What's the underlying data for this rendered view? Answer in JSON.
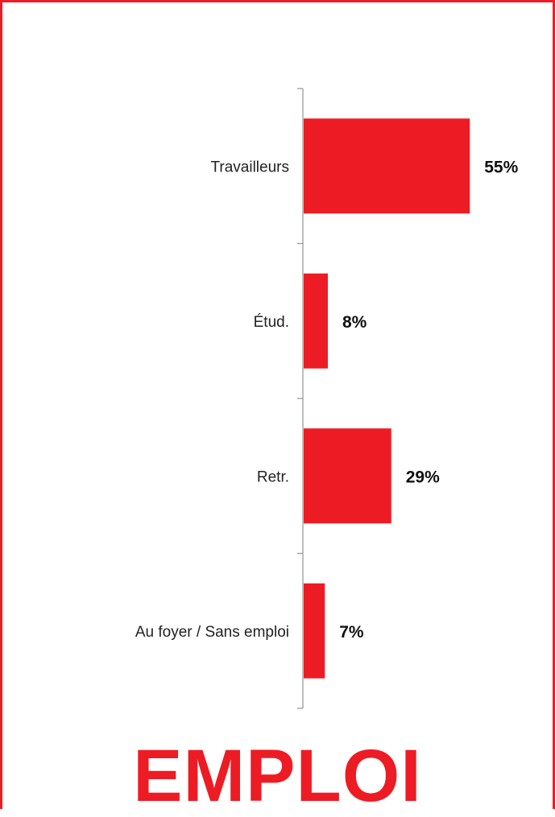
{
  "chart_data": {
    "type": "bar",
    "orientation": "horizontal",
    "categories": [
      "Travailleurs",
      "Étud.",
      "Retr.",
      "Au foyer / Sans emploi"
    ],
    "values": [
      55,
      8,
      29,
      7
    ],
    "value_labels": [
      "55%",
      "8%",
      "29%",
      "7%"
    ],
    "xlim": [
      0,
      60
    ],
    "grid": false,
    "legend": "none",
    "bar_color": "#ED1C24"
  },
  "footer": {
    "title": "EMPLOI",
    "color": "#ED1C24"
  }
}
